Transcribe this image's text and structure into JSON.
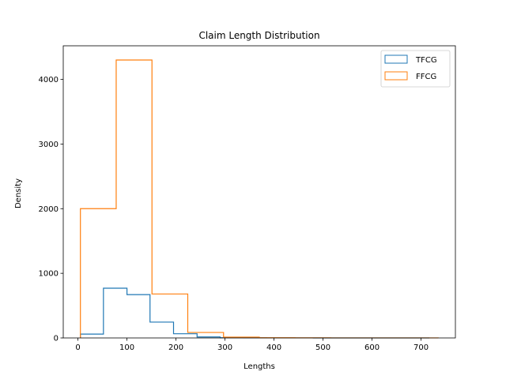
{
  "chart_data": {
    "type": "histogram-step",
    "title": "Claim Length Distribution",
    "xlabel": "Lengths",
    "ylabel": "Density",
    "xlim": [
      -30,
      770
    ],
    "ylim": [
      0,
      4520
    ],
    "xticks": [
      0,
      100,
      200,
      300,
      400,
      500,
      600,
      700
    ],
    "yticks": [
      0,
      1000,
      2000,
      3000,
      4000
    ],
    "legend": {
      "placement": "top-right",
      "entries": [
        "TFCG",
        "FFCG"
      ]
    },
    "grid": false,
    "series": [
      {
        "name": "TFCG",
        "color": "#1f77b4",
        "edges": [
          5,
          52,
          100,
          147,
          195,
          243,
          290,
          337,
          385,
          432,
          480,
          527,
          575,
          622,
          670,
          717
        ],
        "values": [
          60,
          770,
          670,
          245,
          65,
          15,
          4,
          2,
          1,
          1,
          0,
          0,
          0,
          0,
          0
        ]
      },
      {
        "name": "FFCG",
        "color": "#ff7f0e",
        "edges": [
          5,
          78,
          151,
          224,
          297,
          370,
          443,
          516,
          589,
          662,
          735
        ],
        "values": [
          2000,
          4300,
          680,
          85,
          12,
          3,
          2,
          1,
          1,
          1
        ]
      }
    ]
  }
}
